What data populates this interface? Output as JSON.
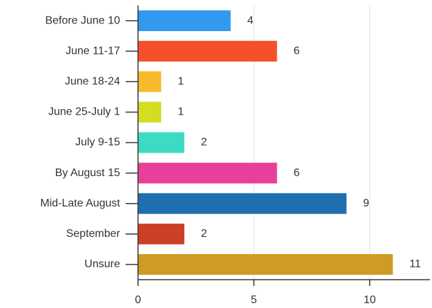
{
  "chart_data": {
    "type": "hbar",
    "categories": [
      "Before June 10",
      "June 11-17",
      "June 18-24",
      "June 25-July 1",
      "July 9-15",
      "By August 15",
      "Mid-Late August",
      "September",
      "Unsure"
    ],
    "values": [
      4,
      6,
      1,
      1,
      2,
      6,
      9,
      2,
      11
    ],
    "colors": [
      "#3399ee",
      "#f4502a",
      "#f6bb2a",
      "#d4dd22",
      "#3ddbc3",
      "#e8409a",
      "#1f6fb0",
      "#cc4125",
      "#d09b22"
    ],
    "xlim": [
      0,
      12.6
    ],
    "xticks": [
      0,
      5,
      10
    ],
    "grid": true
  }
}
